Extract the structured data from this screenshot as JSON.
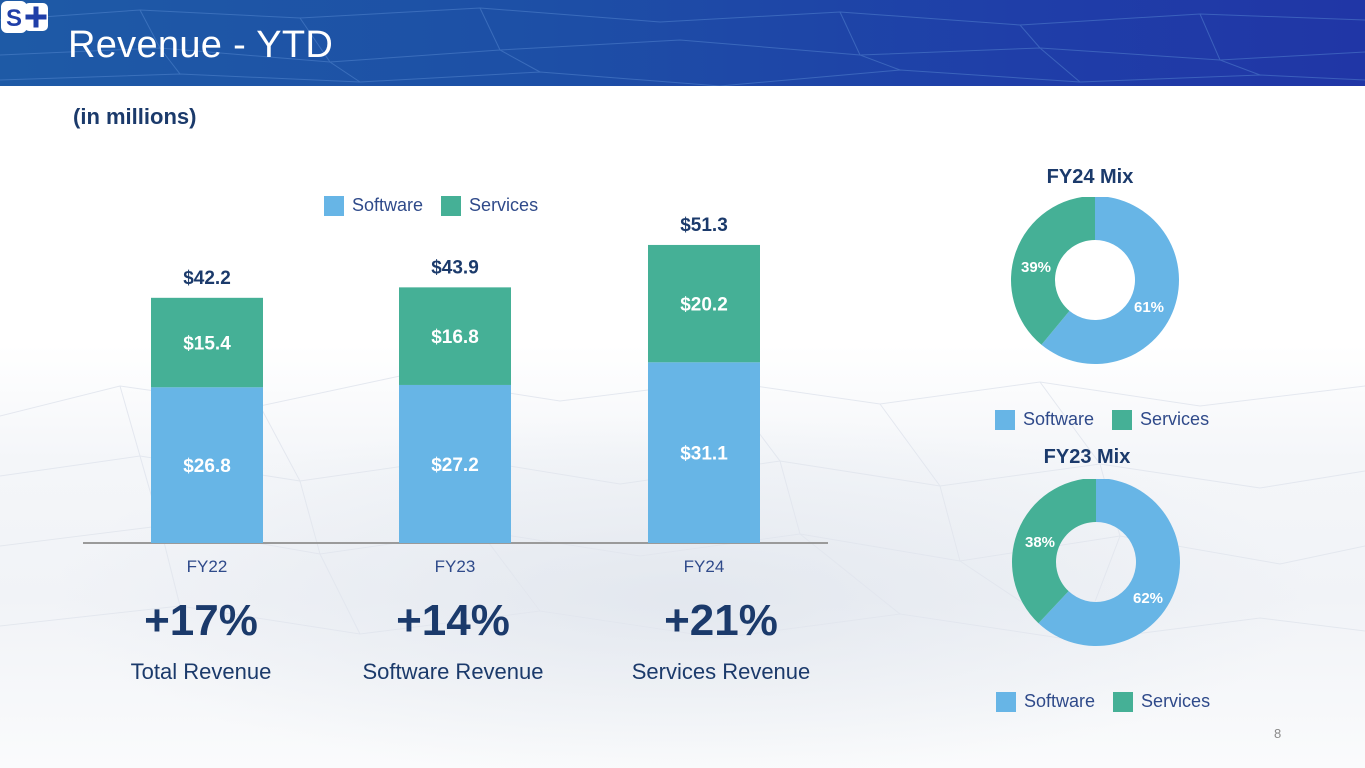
{
  "header": {
    "title": "Revenue - YTD",
    "logo_text": "S+"
  },
  "subtitle": "(in millions)",
  "colors": {
    "software": "#67b5e6",
    "services": "#45b096",
    "text_dark": "#1b3a6b",
    "header_blue": "#1f4ea6"
  },
  "legend": {
    "software": "Software",
    "services": "Services"
  },
  "chart_data": [
    {
      "type": "bar",
      "stacked": true,
      "title": "",
      "categories": [
        "FY22",
        "FY23",
        "FY24"
      ],
      "series": [
        {
          "name": "Software",
          "values": [
            26.8,
            27.2,
            31.1
          ],
          "labels": [
            "$26.8",
            "$27.2",
            "$31.1"
          ]
        },
        {
          "name": "Services",
          "values": [
            15.4,
            16.8,
            20.2
          ],
          "labels": [
            "$15.4",
            "$16.8",
            "$20.2"
          ]
        }
      ],
      "totals": [
        42.2,
        43.9,
        51.3
      ],
      "total_labels": [
        "$42.2",
        "$43.9",
        "$51.3"
      ],
      "xlabel": "",
      "ylabel": "",
      "ylim": [
        0,
        60
      ],
      "grid": false,
      "legend": "top"
    },
    {
      "type": "pie",
      "donut": true,
      "title": "FY24 Mix",
      "categories": [
        "Software",
        "Services"
      ],
      "values": [
        61,
        39
      ],
      "labels": [
        "61%",
        "39%"
      ],
      "legend": "bottom"
    },
    {
      "type": "pie",
      "donut": true,
      "title": "FY23 Mix",
      "categories": [
        "Software",
        "Services"
      ],
      "values": [
        62,
        38
      ],
      "labels": [
        "62%",
        "38%"
      ],
      "legend": "bottom"
    }
  ],
  "growth": [
    {
      "pct": "+17%",
      "label": "Total Revenue"
    },
    {
      "pct": "+14%",
      "label": "Software Revenue"
    },
    {
      "pct": "+21%",
      "label": "Services Revenue"
    }
  ],
  "page_number": "8"
}
